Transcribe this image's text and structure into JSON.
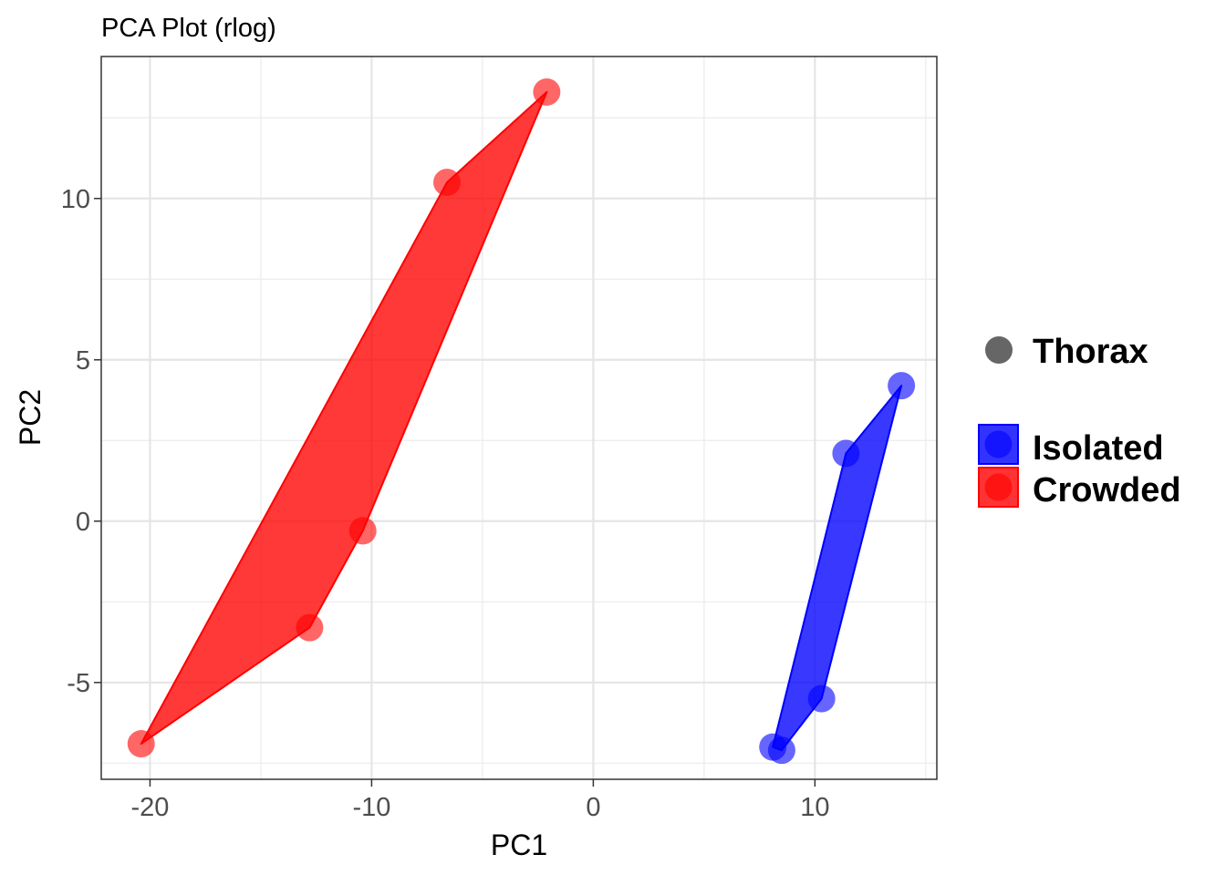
{
  "chart_data": {
    "type": "scatter",
    "title": "PCA Plot (rlog)",
    "xlabel": "PC1",
    "ylabel": "PC2",
    "xlim": [
      -22.2,
      15.5
    ],
    "ylim": [
      -8.0,
      14.4
    ],
    "x_ticks": [
      -20,
      -10,
      0,
      10
    ],
    "y_ticks": [
      -5,
      0,
      5,
      10
    ],
    "x_tick_labels": [
      "-20",
      "-10",
      "0",
      "10"
    ],
    "y_tick_labels": [
      "-5",
      "0",
      "5",
      "10"
    ],
    "grid": true,
    "legend_position": "right",
    "shape_legend": {
      "label": "Thorax",
      "color": "#666666"
    },
    "series": [
      {
        "name": "Isolated",
        "color": "#0000ff",
        "points": [
          {
            "x": 13.9,
            "y": 4.2
          },
          {
            "x": 11.4,
            "y": 2.1
          },
          {
            "x": 10.3,
            "y": -5.5
          },
          {
            "x": 8.1,
            "y": -7.0
          },
          {
            "x": 8.5,
            "y": -7.1
          }
        ]
      },
      {
        "name": "Crowded",
        "color": "#ff0000",
        "points": [
          {
            "x": -2.1,
            "y": 13.3
          },
          {
            "x": -6.6,
            "y": 10.5
          },
          {
            "x": -10.4,
            "y": -0.3
          },
          {
            "x": -12.8,
            "y": -3.3
          },
          {
            "x": -20.4,
            "y": -6.9
          }
        ]
      }
    ]
  }
}
